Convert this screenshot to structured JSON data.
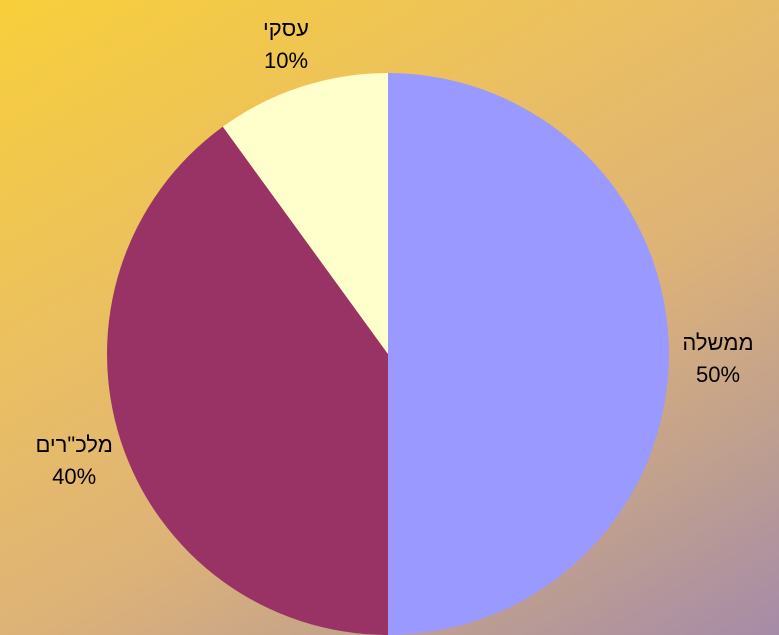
{
  "chart_data": {
    "type": "pie",
    "title": "",
    "start_angle_deg": 0,
    "direction": "clockwise",
    "slices": [
      {
        "label": "ממשלה",
        "value": 50,
        "value_label": "50%",
        "color": "#9999ff"
      },
      {
        "label": "מלכ\"רים",
        "value": 40,
        "value_label": "40%",
        "color": "#993366"
      },
      {
        "label": "עסקי",
        "value": 10,
        "value_label": "10%",
        "color": "#ffffcc"
      }
    ]
  }
}
